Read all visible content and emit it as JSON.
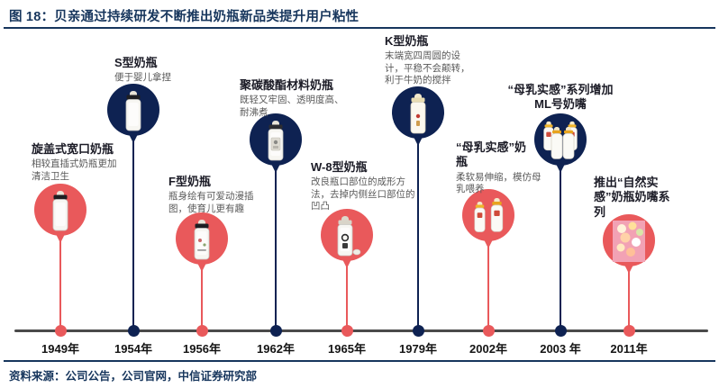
{
  "header": {
    "title": "图 18：贝亲通过持续研发不断推出奶瓶新品类提升用户粘性"
  },
  "colors": {
    "red": "#E9595B",
    "navy": "#0E2252",
    "header_blue": "#17365D",
    "axis_gray": "#4a4a4a"
  },
  "timeline": {
    "milestones": [
      {
        "year": "1949年",
        "title": "旋盖式宽口奶瓶",
        "desc": "相较直插式奶瓶更加\n清洁卫生",
        "color": "red",
        "image": "bottle-black-cap"
      },
      {
        "year": "1954年",
        "title": "S型奶瓶",
        "desc": "便于婴儿拿捏",
        "color": "navy",
        "image": "bottle-black-cap"
      },
      {
        "year": "1956年",
        "title": "F型奶瓶",
        "desc": "瓶身绘有可爱动漫插\n图，使育儿更有趣",
        "color": "red",
        "image": "bottle-cartoon-print"
      },
      {
        "year": "1962年",
        "title": "聚碳酸酯材料奶瓶",
        "desc": "既轻又牢固、透明度高、\n耐沸煮",
        "color": "navy",
        "image": "bottle-label"
      },
      {
        "year": "1965年",
        "title": "W-8型奶瓶",
        "desc": "改良瓶口部位的成形方\n法，去掉内侧丝口部位的\n凹凸",
        "color": "red",
        "image": "bottle-logo"
      },
      {
        "year": "1979年",
        "title": "K型奶瓶",
        "desc": "末端宽四周圆的设\n计，平稳不会颠转，\n利于牛奶的搅拌",
        "color": "navy",
        "image": "bottle-cream"
      },
      {
        "year": "2002年",
        "title": "“母乳实感”奶\n瓶",
        "desc": "柔软易伸缩，模仿母\n乳喂养",
        "color": "red",
        "image": "two-bottles"
      },
      {
        "year": "2003 年",
        "title": "“母乳实感”系列增加\nML号奶嘴",
        "desc": "",
        "color": "navy",
        "image": "four-bottles"
      },
      {
        "year": "2011年",
        "title": "推出“自然实\n感”奶瓶奶嘴系\n列",
        "desc": "",
        "color": "red",
        "image": "nipples-photo"
      }
    ]
  },
  "footer": {
    "source": "资料来源：公司公告，公司官网，中信证券研究部"
  }
}
